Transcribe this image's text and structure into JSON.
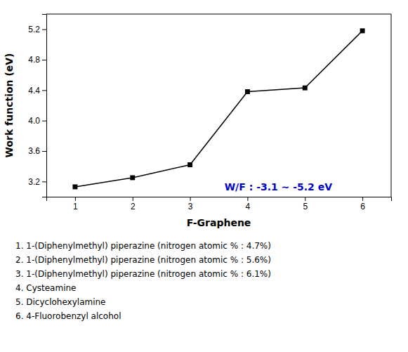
{
  "chart_data": {
    "type": "line",
    "x": [
      1,
      2,
      3,
      4,
      5,
      6
    ],
    "values": [
      3.13,
      3.25,
      3.42,
      4.38,
      4.43,
      5.18
    ],
    "xlabel": "F-Graphene",
    "ylabel": "Work function (eV)",
    "xlim": [
      0.5,
      6.5
    ],
    "ylim": [
      3.0,
      5.4
    ],
    "xticks": [
      1,
      2,
      3,
      4,
      5,
      6
    ],
    "yticks": [
      3.2,
      3.6,
      {
        "value": 4.0,
        "label": "4.0"
      },
      4.4,
      4.8,
      5.2
    ],
    "color": "#000000",
    "marker": "square",
    "grid": false,
    "annotations": [
      {
        "text": "W/F : -3.1 ~ -5.2 eV",
        "x": 3.6,
        "y": 3.08,
        "color": "#0000CC"
      }
    ],
    "footnotes": [
      "1. 1-(Diphenylmethyl) piperazine (nitrogen atomic % : 4.7%)",
      "2. 1-(Diphenylmethyl) piperazine (nitrogen atomic % : 5.6%)",
      "3. 1-(Diphenylmethyl) piperazine (nitrogen atomic % : 6.1%)",
      "4. Cysteamine",
      "5. Dicyclohexylamine",
      "6. 4-Fluorobenzyl alcohol"
    ]
  }
}
